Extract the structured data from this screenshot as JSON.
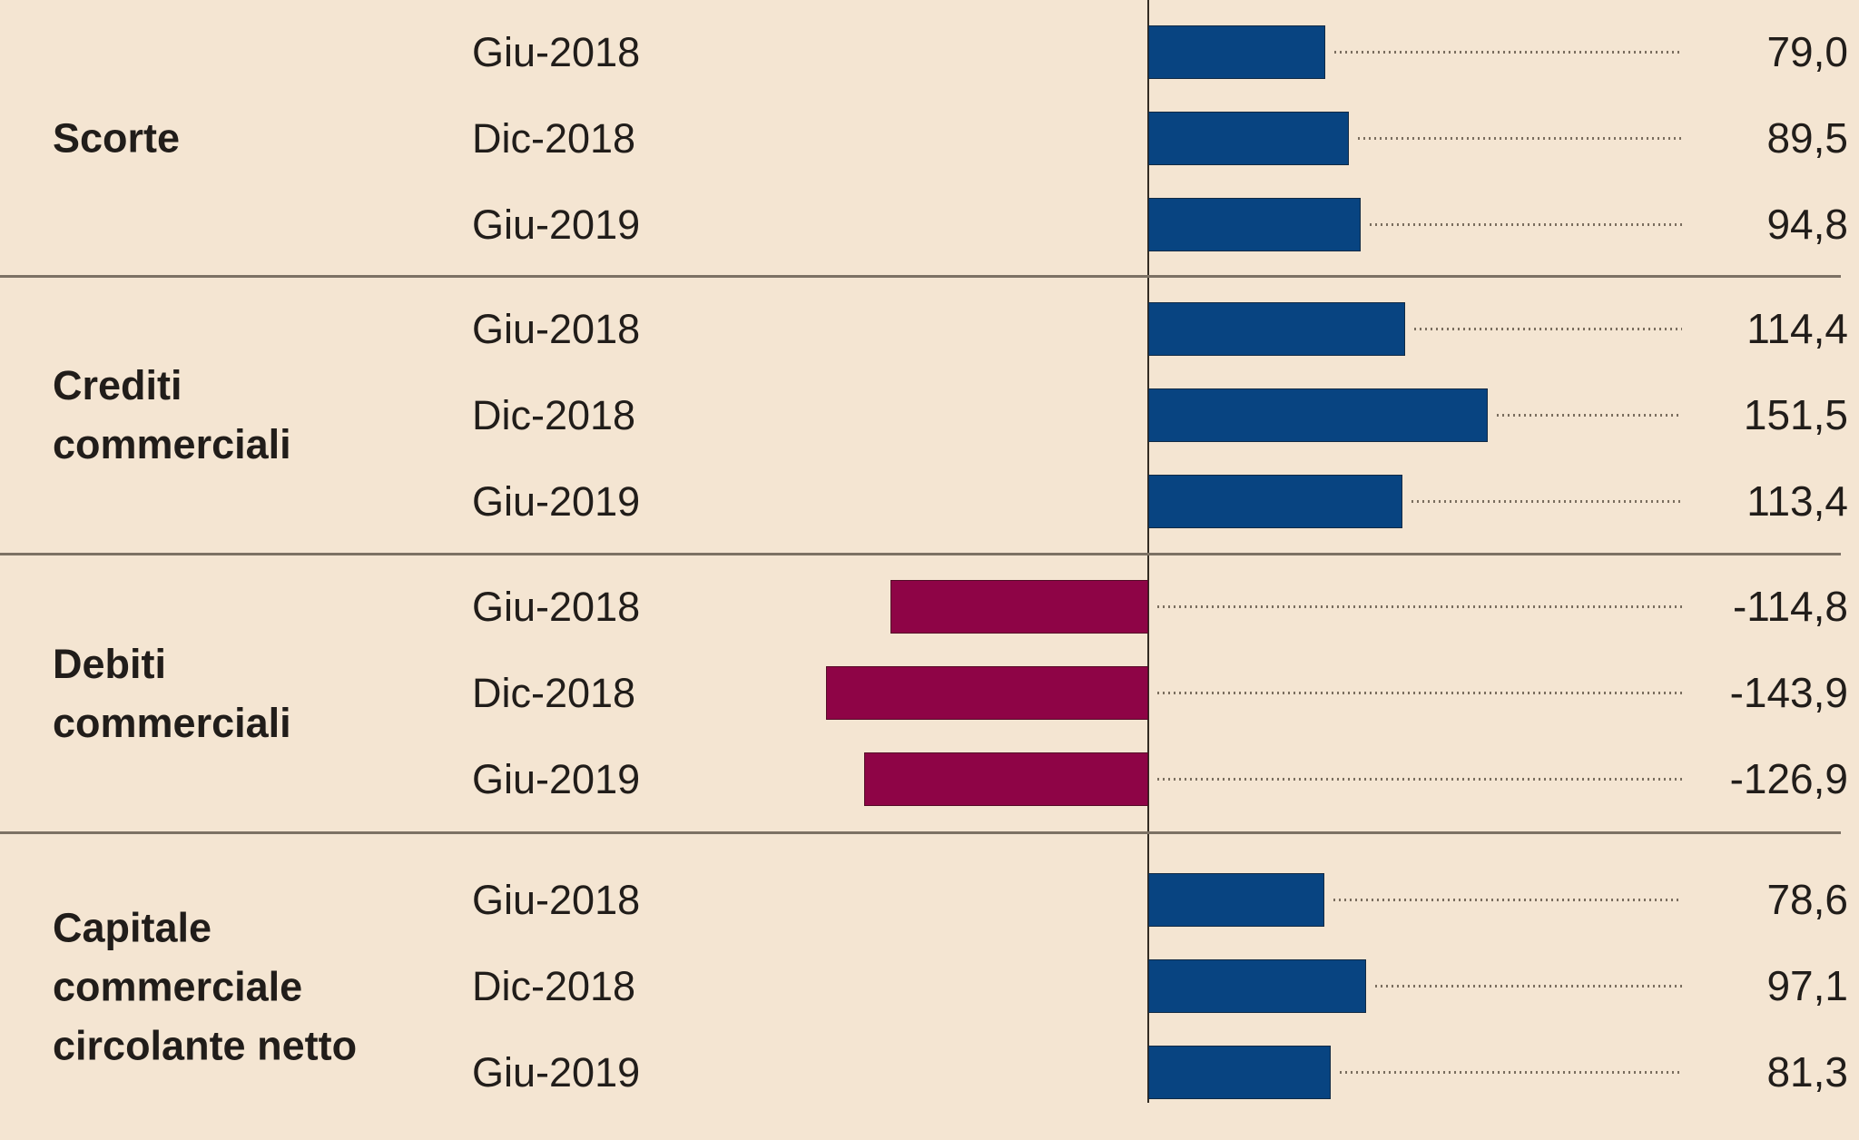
{
  "chart_data": {
    "type": "bar",
    "orientation": "horizontal",
    "value_format": "decimal-comma",
    "xlim": [
      -160,
      160
    ],
    "legend": null,
    "grid": "dotted-leader-lines-to-value-labels",
    "groups": [
      {
        "label": "Scorte",
        "bars": [
          {
            "period": "Giu-2018",
            "value": 79.0,
            "value_label": "79,0"
          },
          {
            "period": "Dic-2018",
            "value": 89.5,
            "value_label": "89,5"
          },
          {
            "period": "Giu-2019",
            "value": 94.8,
            "value_label": "94,8"
          }
        ]
      },
      {
        "label": "Crediti commerciali",
        "bars": [
          {
            "period": "Giu-2018",
            "value": 114.4,
            "value_label": "114,4"
          },
          {
            "period": "Dic-2018",
            "value": 151.5,
            "value_label": "151,5"
          },
          {
            "period": "Giu-2019",
            "value": 113.4,
            "value_label": "113,4"
          }
        ]
      },
      {
        "label": "Debiti commerciali",
        "bars": [
          {
            "period": "Giu-2018",
            "value": -114.8,
            "value_label": "-114,8"
          },
          {
            "period": "Dic-2018",
            "value": -143.9,
            "value_label": "-143,9"
          },
          {
            "period": "Giu-2019",
            "value": -126.9,
            "value_label": "-126,9"
          }
        ]
      },
      {
        "label": "Capitale commerciale circolante netto",
        "bars": [
          {
            "period": "Giu-2018",
            "value": 78.6,
            "value_label": "78,6"
          },
          {
            "period": "Dic-2018",
            "value": 97.1,
            "value_label": "97,1"
          },
          {
            "period": "Giu-2019",
            "value": 81.3,
            "value_label": "81,3"
          }
        ]
      }
    ],
    "colors": {
      "positive_bar": "#084481",
      "negative_bar": "#8e0446",
      "background": "#f4e5d2",
      "divider": "#7c7164",
      "axis": "#332c23",
      "text": "#211d1a",
      "leader_dots": "#7a6e5f"
    }
  }
}
